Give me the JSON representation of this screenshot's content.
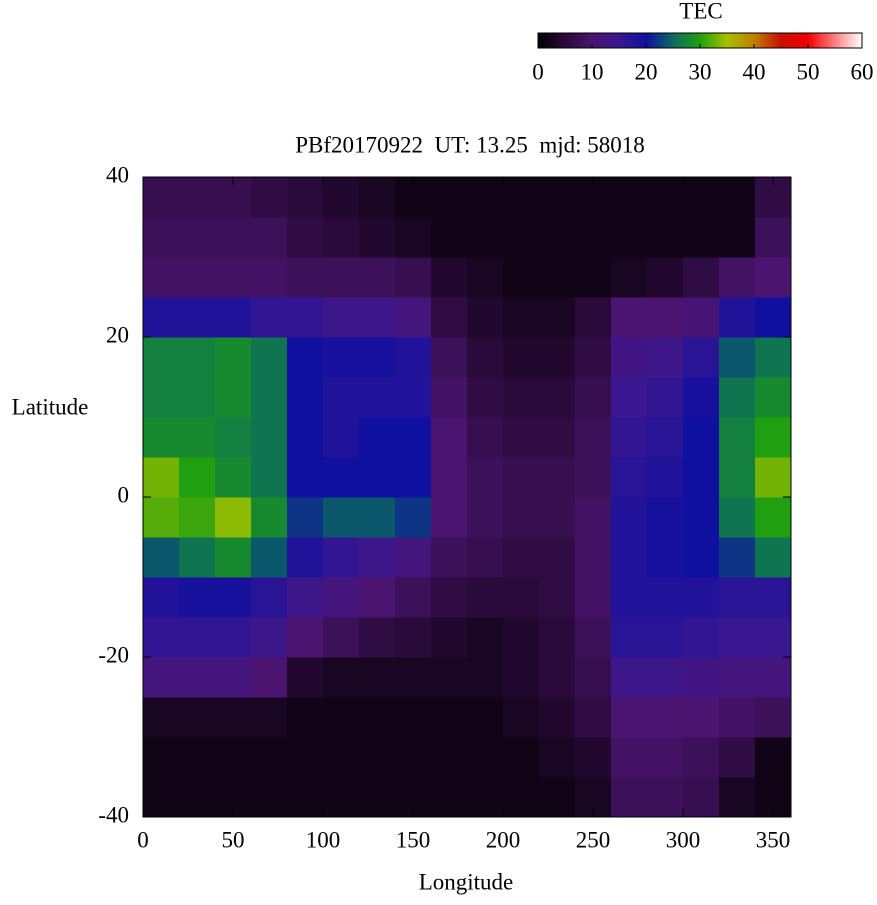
{
  "chart_data": {
    "type": "heatmap",
    "title": "PBf20170922  UT: 13.25  mjd: 58018",
    "x_label": "Longitude",
    "y_label": "Latitude",
    "colorbar_label": "TEC",
    "x_bins": [
      0,
      20,
      40,
      60,
      80,
      100,
      120,
      140,
      160,
      180,
      200,
      220,
      240,
      260,
      280,
      300,
      320,
      340,
      360
    ],
    "y_bins": [
      -40,
      -35,
      -30,
      -25,
      -20,
      -15,
      -10,
      -5,
      0,
      5,
      10,
      15,
      20,
      25,
      30,
      35,
      40
    ],
    "values": [
      [
        2,
        2,
        2,
        2,
        2,
        2,
        2,
        2,
        2,
        2,
        2,
        2,
        3,
        8,
        8,
        7,
        3,
        2
      ],
      [
        2,
        2,
        2,
        2,
        2,
        2,
        2,
        2,
        2,
        2,
        2,
        3,
        4,
        9,
        9,
        8,
        6,
        2
      ],
      [
        3,
        3,
        3,
        3,
        2,
        2,
        2,
        2,
        2,
        2,
        3,
        4,
        6,
        10,
        10,
        10,
        9,
        8
      ],
      [
        12,
        12,
        12,
        10,
        4,
        3,
        3,
        3,
        3,
        3,
        4,
        5,
        7,
        14,
        14,
        13,
        12,
        12
      ],
      [
        16,
        16,
        16,
        14,
        10,
        8,
        6,
        5,
        4,
        3,
        4,
        5,
        8,
        17,
        17,
        16,
        15,
        15
      ],
      [
        18,
        19,
        19,
        17,
        14,
        12,
        10,
        8,
        6,
        5,
        5,
        6,
        9,
        18,
        18,
        18,
        17,
        17
      ],
      [
        24,
        26,
        28,
        24,
        18,
        16,
        14,
        12,
        8,
        7,
        6,
        6,
        9,
        18,
        19,
        20,
        22,
        26
      ],
      [
        32,
        31,
        34,
        28,
        22,
        24,
        24,
        22,
        10,
        8,
        7,
        7,
        9,
        18,
        19,
        20,
        26,
        30
      ],
      [
        33,
        30,
        28,
        26,
        20,
        20,
        20,
        20,
        10,
        8,
        7,
        7,
        8,
        17,
        18,
        20,
        27,
        33
      ],
      [
        28,
        28,
        27,
        26,
        20,
        18,
        20,
        20,
        10,
        7,
        6,
        6,
        8,
        16,
        17,
        20,
        27,
        30
      ],
      [
        27,
        27,
        28,
        26,
        20,
        18,
        18,
        18,
        9,
        6,
        5,
        5,
        7,
        15,
        16,
        19,
        26,
        28
      ],
      [
        27,
        27,
        28,
        26,
        20,
        19,
        19,
        18,
        8,
        5,
        4,
        4,
        6,
        13,
        14,
        17,
        24,
        26
      ],
      [
        18,
        18,
        18,
        16,
        16,
        14,
        14,
        12,
        6,
        4,
        3,
        3,
        5,
        10,
        10,
        11,
        18,
        20
      ],
      [
        9,
        9,
        9,
        9,
        8,
        8,
        8,
        7,
        4,
        3,
        2,
        2,
        2,
        3,
        4,
        6,
        9,
        10
      ],
      [
        8,
        8,
        8,
        8,
        6,
        5,
        4,
        3,
        2,
        2,
        2,
        2,
        2,
        2,
        2,
        2,
        2,
        8
      ],
      [
        7,
        7,
        7,
        6,
        5,
        4,
        3,
        2,
        2,
        2,
        2,
        2,
        2,
        2,
        2,
        2,
        2,
        6
      ]
    ],
    "xlim": [
      0,
      360
    ],
    "xticks": [
      0,
      50,
      100,
      150,
      200,
      250,
      300,
      350
    ],
    "ylim": [
      -40,
      40
    ],
    "yticks": [
      -40,
      -20,
      0,
      20,
      40
    ],
    "clim": [
      0,
      60
    ],
    "cticks": [
      0,
      10,
      20,
      30,
      40,
      50,
      60
    ],
    "colormap": [
      "#000000",
      "#2a0a3a",
      "#4a1470",
      "#3a1690",
      "#1010a0",
      "#0a6a60",
      "#20a010",
      "#a8c000",
      "#c08000",
      "#c81000",
      "#f00000",
      "#ff8080",
      "#ffffff"
    ]
  }
}
